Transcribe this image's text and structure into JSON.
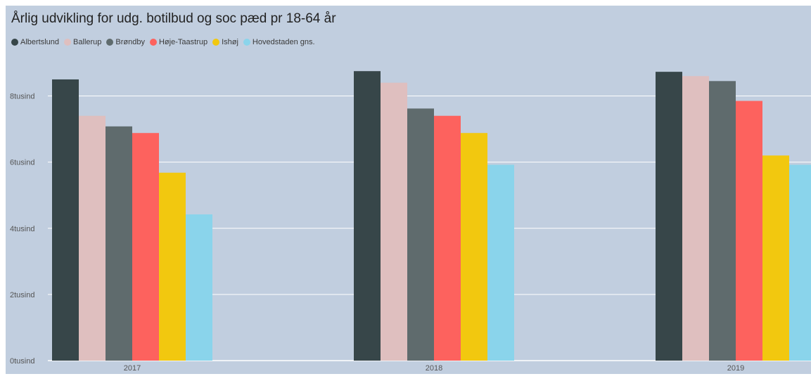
{
  "chart_data": {
    "type": "bar",
    "title": "Årlig udvikling for udg. botilbud og soc pæd pr 18-64 år",
    "categories": [
      "2017",
      "2018",
      "2019"
    ],
    "series": [
      {
        "name": "Albertslund",
        "color": "#374649",
        "values": [
          8500,
          8750,
          8730
        ]
      },
      {
        "name": "Ballerup",
        "color": "#dfbfbf",
        "values": [
          7400,
          8400,
          8600
        ]
      },
      {
        "name": "Brøndby",
        "color": "#5f6b6d",
        "values": [
          7080,
          7620,
          8450
        ]
      },
      {
        "name": "Høje-Taastrup",
        "color": "#fd625e",
        "values": [
          6880,
          7400,
          7850
        ]
      },
      {
        "name": "Ishøj",
        "color": "#f2c80f",
        "values": [
          5680,
          6880,
          6200
        ]
      },
      {
        "name": "Hovedstaden gns.",
        "color": "#8ad4eb",
        "values": [
          4420,
          5920,
          5920
        ]
      }
    ],
    "yticks": [
      0,
      2000,
      4000,
      6000,
      8000
    ],
    "ytick_labels": [
      "0tusind",
      "2tusind",
      "4tusind",
      "6tusind",
      "8tusind"
    ],
    "ylim": [
      0,
      9200
    ],
    "grid": true,
    "legend_position": "top-left"
  }
}
